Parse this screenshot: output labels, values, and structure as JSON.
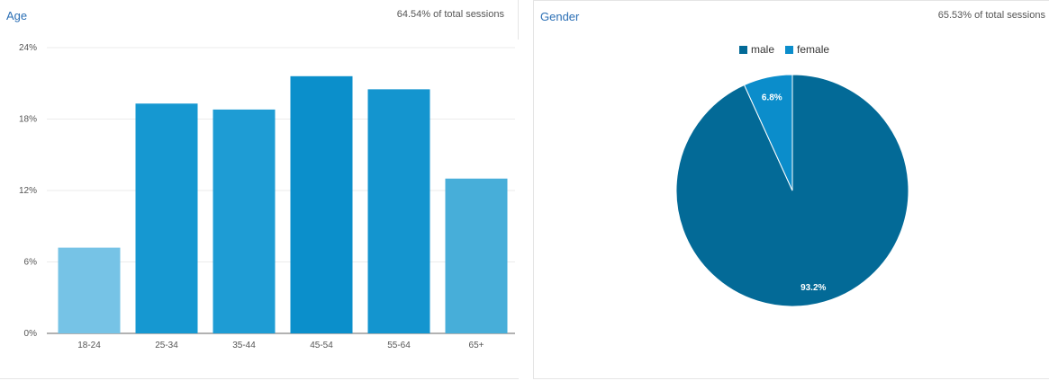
{
  "age": {
    "title": "Age",
    "sessions": "64.54% of total sessions",
    "chart_data": {
      "type": "bar",
      "title": "Age",
      "categories": [
        "18-24",
        "25-34",
        "35-44",
        "45-54",
        "55-64",
        "65+"
      ],
      "values": [
        7.2,
        19.3,
        18.8,
        21.6,
        20.5,
        13.0
      ],
      "colors": [
        "#76c3e6",
        "#1698d1",
        "#1e9cd4",
        "#0b8fcb",
        "#1495cf",
        "#47aed9"
      ],
      "yticks": [
        "0%",
        "6%",
        "12%",
        "18%",
        "24%"
      ],
      "ylim": [
        0,
        24
      ],
      "xlabel": "",
      "ylabel": "",
      "grid": true
    }
  },
  "gender": {
    "title": "Gender",
    "sessions": "65.53% of total sessions",
    "chart_data": {
      "type": "pie",
      "title": "Gender",
      "labels": [
        "male",
        "female"
      ],
      "values": [
        93.2,
        6.8
      ],
      "value_labels": [
        "93.2%",
        "6.8%"
      ],
      "colors": [
        "#036a97",
        "#0b8dcb"
      ],
      "legend": "top-center"
    }
  }
}
